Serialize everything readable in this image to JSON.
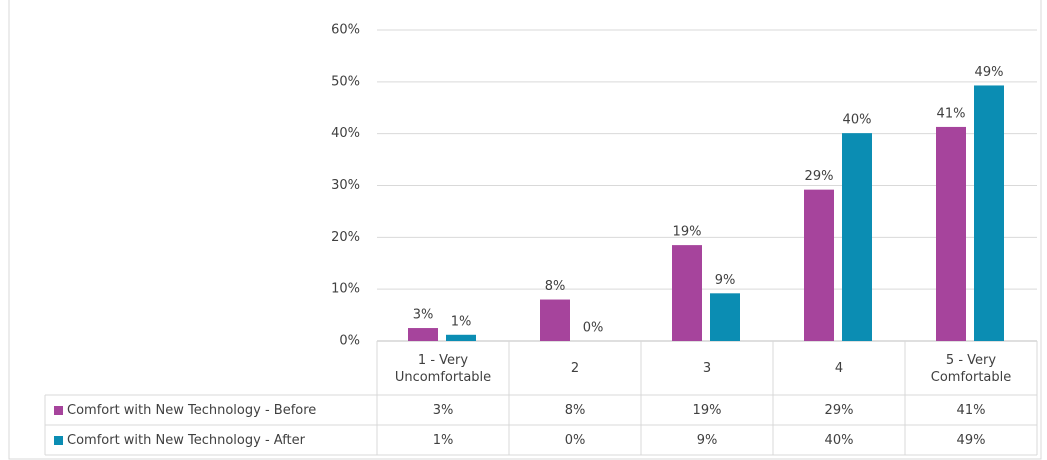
{
  "chart_data": {
    "type": "bar",
    "categories": [
      "1 - Very Uncomfortable",
      "2",
      "3",
      "4",
      "5 - Very Comfortable"
    ],
    "series": [
      {
        "name": "Comfort with New Technology - Before",
        "color": "#a6449c",
        "values": [
          2.5,
          8,
          18.5,
          29.2,
          41.3
        ],
        "value_labels": [
          "3%",
          "8%",
          "19%",
          "29%",
          "41%"
        ]
      },
      {
        "name": "Comfort with New Technology - After",
        "color": "#0b8db3",
        "values": [
          1.2,
          0,
          9.2,
          40.1,
          49.3
        ],
        "value_labels": [
          "1%",
          "0%",
          "9%",
          "40%",
          "49%"
        ]
      }
    ],
    "ylim": [
      0,
      60
    ],
    "yticks": [
      {
        "value": 0,
        "label": "0%"
      },
      {
        "value": 10,
        "label": "10%"
      },
      {
        "value": 20,
        "label": "20%"
      },
      {
        "value": 30,
        "label": "30%"
      },
      {
        "value": 40,
        "label": "40%"
      },
      {
        "value": 50,
        "label": "50%"
      },
      {
        "value": 60,
        "label": "60%"
      }
    ],
    "grid": true
  }
}
